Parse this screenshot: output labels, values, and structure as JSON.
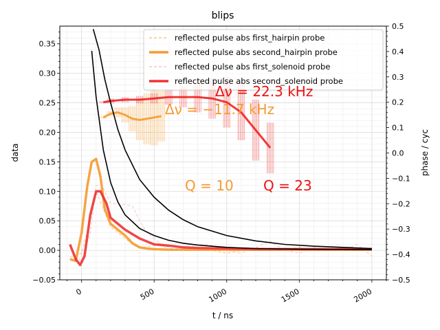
{
  "chart_data": {
    "type": "line",
    "title": "blips",
    "xlabel": "t / ns",
    "ylabel": "data",
    "y2label": "phase / cyc",
    "xlim": [
      -150,
      2100
    ],
    "ylim": [
      -0.05,
      0.38
    ],
    "y2lim": [
      -0.5,
      0.5
    ],
    "x_ticks": [
      0,
      500,
      1000,
      1500,
      2000
    ],
    "x_tick_labels": [
      "0",
      "500",
      "1000",
      "1500",
      "2000"
    ],
    "y_ticks": [
      -0.05,
      0.0,
      0.05,
      0.1,
      0.15,
      0.2,
      0.25,
      0.3,
      0.35
    ],
    "y_tick_labels": [
      "−0.05",
      "0.00",
      "0.05",
      "0.10",
      "0.15",
      "0.20",
      "0.25",
      "0.30",
      "0.35"
    ],
    "y2_ticks": [
      -0.5,
      -0.4,
      -0.3,
      -0.2,
      -0.1,
      0.0,
      0.1,
      0.2,
      0.3,
      0.4,
      0.5
    ],
    "y2_tick_labels": [
      "−0.5",
      "−0.4",
      "−0.3",
      "−0.2",
      "−0.1",
      "0.0",
      "0.1",
      "0.2",
      "0.3",
      "0.4",
      "0.5"
    ],
    "grid": true,
    "legend_position": "top-right",
    "series": [
      {
        "name": "reflected pulse abs first_hairpin probe",
        "color": "#f7a84b",
        "style": "dashed-thin",
        "x": [
          -80,
          0,
          60,
          100,
          150,
          200,
          250,
          300,
          350,
          400,
          450,
          500,
          550,
          600,
          650,
          700,
          800,
          900,
          1000,
          1100,
          1200,
          1300,
          1400,
          1500,
          1600,
          1700,
          1800,
          1900,
          2000
        ],
        "y": [
          -0.012,
          -0.005,
          0.05,
          0.1,
          0.07,
          0.04,
          0.03,
          0.02,
          0.01,
          0.005,
          0.005,
          0.01,
          0.012,
          0.005,
          0.0,
          0.0,
          0.0,
          0.0,
          -0.005,
          0.0,
          0.005,
          0.0,
          0.0,
          0.005,
          0.0,
          0.0,
          0.005,
          0.0,
          0.002
        ]
      },
      {
        "name": "reflected pulse abs second_hairpin probe",
        "color": "#f59a2e",
        "style": "solid-thick",
        "x": [
          -80,
          -40,
          0,
          40,
          70,
          100,
          130,
          160,
          200,
          250,
          300,
          350,
          400,
          450,
          500,
          600,
          700,
          800,
          1000,
          1200,
          1500,
          2000
        ],
        "y": [
          -0.015,
          -0.018,
          0.03,
          0.11,
          0.15,
          0.155,
          0.125,
          0.07,
          0.045,
          0.035,
          0.025,
          0.012,
          0.005,
          0.003,
          0.002,
          0.001,
          0.001,
          0.001,
          0.001,
          0.001,
          0.001,
          0.001
        ]
      },
      {
        "name": "reflected pulse abs first_solenoid probe",
        "color": "#f7a8a8",
        "style": "dashed-thin",
        "x": [
          -80,
          0,
          60,
          100,
          140,
          200,
          250,
          300,
          350,
          400,
          450,
          500,
          600,
          700,
          800,
          900,
          1000,
          1100,
          1200,
          1300,
          1400,
          1500,
          1600,
          1700,
          1800,
          1900,
          2000
        ],
        "y": [
          0.005,
          -0.02,
          0.03,
          0.11,
          0.11,
          0.08,
          0.078,
          0.078,
          0.075,
          0.05,
          0.03,
          0.02,
          0.0,
          0.0,
          0.01,
          0.008,
          0.0,
          -0.005,
          0.005,
          0.015,
          0.0,
          -0.005,
          0.005,
          0.0,
          0.0,
          0.01,
          -0.01
        ]
      },
      {
        "name": "reflected pulse abs second_solenoid probe",
        "color": "#ee3333",
        "style": "solid-thick",
        "x": [
          -80,
          -40,
          -10,
          20,
          60,
          100,
          130,
          170,
          200,
          250,
          300,
          400,
          500,
          600,
          700,
          800,
          1000,
          1200,
          1500,
          2000
        ],
        "y": [
          0.01,
          -0.015,
          -0.025,
          -0.01,
          0.06,
          0.1,
          0.1,
          0.08,
          0.055,
          0.045,
          0.035,
          0.02,
          0.01,
          0.008,
          0.005,
          0.004,
          0.003,
          0.002,
          0.002,
          0.002
        ]
      }
    ],
    "fit_curves": [
      {
        "color": "#000000",
        "x": [
          70,
          100,
          150,
          200,
          250,
          300,
          400,
          500,
          600,
          700,
          800,
          1000,
          1200,
          1500,
          2000
        ],
        "y": [
          0.338,
          0.26,
          0.17,
          0.115,
          0.082,
          0.06,
          0.037,
          0.025,
          0.017,
          0.012,
          0.009,
          0.005,
          0.003,
          0.002,
          0.001
        ]
      },
      {
        "color": "#000000",
        "x": [
          80,
          120,
          160,
          200,
          250,
          300,
          400,
          500,
          600,
          700,
          800,
          1000,
          1200,
          1400,
          1600,
          1800,
          2000
        ],
        "y": [
          0.375,
          0.34,
          0.29,
          0.25,
          0.205,
          0.17,
          0.12,
          0.09,
          0.068,
          0.052,
          0.04,
          0.025,
          0.016,
          0.01,
          0.007,
          0.005,
          0.003
        ]
      }
    ],
    "phase_series": [
      {
        "color": "#f59a2e",
        "x": [
          150,
          200,
          250,
          300,
          350,
          400,
          450,
          500,
          550
        ],
        "phase": [
          0.14,
          0.155,
          0.16,
          0.15,
          0.135,
          0.13,
          0.135,
          0.14,
          0.145
        ],
        "err": [
          0.005,
          0.01,
          0.02,
          0.03,
          0.05,
          0.08,
          0.1,
          0.11,
          0.1
        ]
      },
      {
        "color": "#ee2222",
        "x": [
          150,
          200,
          300,
          400,
          500,
          600,
          700,
          800,
          900,
          1000,
          1100,
          1200,
          1300
        ],
        "phase": [
          0.2,
          0.205,
          0.21,
          0.21,
          0.215,
          0.22,
          0.22,
          0.22,
          0.215,
          0.2,
          0.16,
          0.09,
          0.02
        ],
        "err": [
          0.005,
          0.01,
          0.01,
          0.015,
          0.02,
          0.03,
          0.04,
          0.06,
          0.08,
          0.1,
          0.11,
          0.12,
          0.1
        ]
      }
    ],
    "annotations": [
      {
        "id": "dnu-solenoid",
        "text": "Δν = 22.3 kHz",
        "color": "#ee1111"
      },
      {
        "id": "dnu-hairpin",
        "text": "Δν = −11.7 kHz",
        "color": "#f59a2e"
      },
      {
        "id": "q-hairpin",
        "text": "Q = 10",
        "color": "#f59a2e"
      },
      {
        "id": "q-solenoid",
        "text": "Q = 23",
        "color": "#ee1111"
      }
    ]
  }
}
